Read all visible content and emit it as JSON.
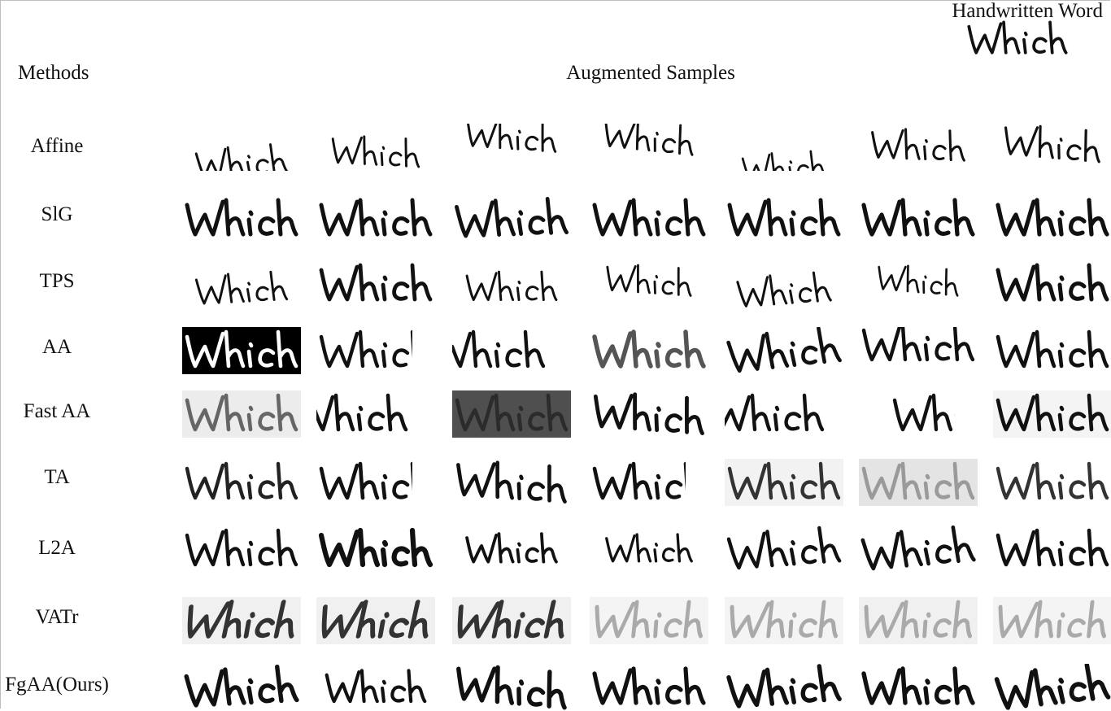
{
  "header": {
    "methods_label": "Methods",
    "augmented_label": "Augmented Samples",
    "reference_label": "Handwritten Word"
  },
  "word": "Which",
  "rows": [
    {
      "method": "Affine"
    },
    {
      "method": "SlG"
    },
    {
      "method": "TPS"
    },
    {
      "method": "AA"
    },
    {
      "method": "Fast AA"
    },
    {
      "method": "TA"
    },
    {
      "method": "L2A"
    },
    {
      "method": "VATr"
    },
    {
      "method": "FgAA(Ours)"
    }
  ],
  "colors": {
    "ink": "#111111",
    "gray_ink": "#555555",
    "light_gray_ink": "#9a9a9a",
    "black_background": "#000000",
    "dark_gray_background": "#4f4f4f",
    "light_background": "#ececec"
  }
}
